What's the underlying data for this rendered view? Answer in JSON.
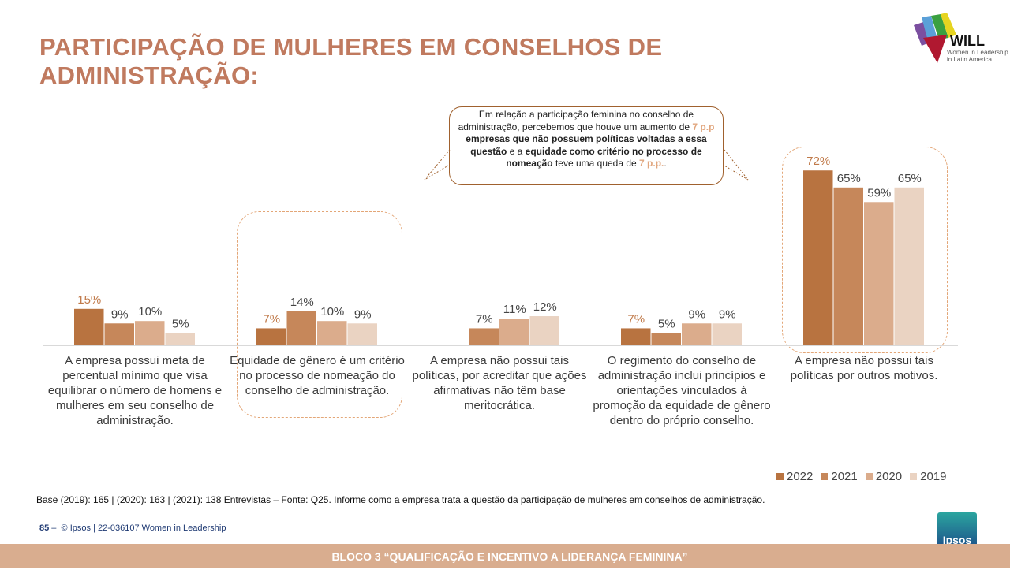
{
  "title": "PARTICIPAÇÃO DE MULHERES EM CONSELHOS DE ADMINISTRAÇÃO:",
  "logo": {
    "name": "WILL",
    "subtitle": "Women in Leadership in Latin America"
  },
  "callout": {
    "p1": "Em relação a participação feminina no conselho de administração, percebemos que houve um aumento de ",
    "hl1": "7 p.p",
    "b1": " empresas que não possuem políticas voltadas a essa questão",
    "p2": " e a ",
    "b2": "equidade como critério no processo de nomeação",
    "p3": " teve uma queda de ",
    "hl2": "7 p.p.",
    "p4": "."
  },
  "chart_data": {
    "type": "bar",
    "categories": [
      "A empresa possui meta de percentual mínimo que visa equilibrar o número de homens e mulheres em seu conselho de administração.",
      "Equidade de gênero é um critério no processo de nomeação do conselho de administração.",
      "A empresa não possui tais políticas, por acreditar que ações afirmativas não têm base meritocrática.",
      "O regimento do conselho de administração inclui princípios e orientações vinculados à promoção da equidade de gênero dentro do próprio conselho.",
      "A empresa não possui tais políticas por outros motivos."
    ],
    "series": [
      {
        "name": "2022",
        "color": "#b87340",
        "values": [
          15,
          7,
          null,
          7,
          72
        ]
      },
      {
        "name": "2021",
        "color": "#c6875a",
        "values": [
          9,
          14,
          7,
          5,
          65
        ]
      },
      {
        "name": "2020",
        "color": "#dbac8c",
        "values": [
          10,
          10,
          11,
          9,
          59
        ]
      },
      {
        "name": "2019",
        "color": "#ead3c2",
        "values": [
          5,
          9,
          12,
          9,
          65
        ]
      }
    ],
    "label_format": "{v}%",
    "highlight_label_color": "#c07a4a",
    "ylim": [
      0,
      75
    ],
    "legend": "bottom-right"
  },
  "base_note": "Base (2019): 165 | (2020): 163 | (2021): 138 Entrevistas – Fonte: Q25. Informe como a empresa trata a questão da participação de mulheres em conselhos de administração.",
  "page_number": "85",
  "copyright": "© Ipsos | 22-036107 Women in Leadership",
  "ipsos_logo": "Ipsos",
  "footer": "BLOCO 3 “QUALIFICAÇÃO  E INCENTIVO  A LIDERANÇA   FEMININA”"
}
